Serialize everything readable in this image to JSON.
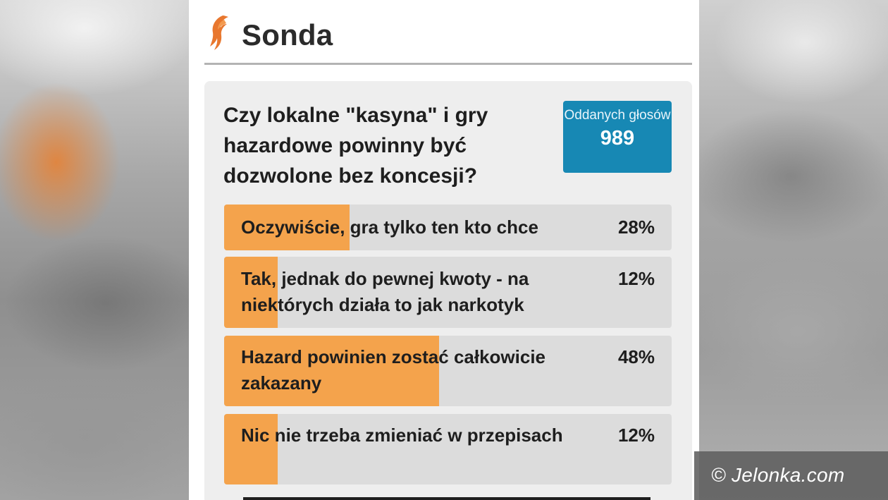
{
  "header": {
    "title": "Sonda",
    "logo_icon": "flame-logo-icon",
    "logo_color": "#e8772e"
  },
  "poll": {
    "question": "Czy lokalne \"kasyna\" i gry hazardowe powinny być dozwolone bez koncesji?",
    "votes_label": "Oddanych głosów",
    "votes_count": "989",
    "accent_color": "#1788b4",
    "bar_color": "#f4a34c",
    "options": [
      {
        "label": "Oczywiście, gra tylko ten kto chce",
        "percent_label": "28%",
        "percent": 28
      },
      {
        "label": "Tak, jednak do pewnej kwoty - na niektórych działa to jak narkotyk",
        "percent_label": "12%",
        "percent": 12
      },
      {
        "label": "Hazard powinien zostać całkowicie zakazany",
        "percent_label": "48%",
        "percent": 48
      },
      {
        "label": "Nic nie trzeba zmieniać w przepisach",
        "percent_label": "12%",
        "percent": 12
      }
    ]
  },
  "watermark": {
    "text": "© Jelonka.com"
  }
}
